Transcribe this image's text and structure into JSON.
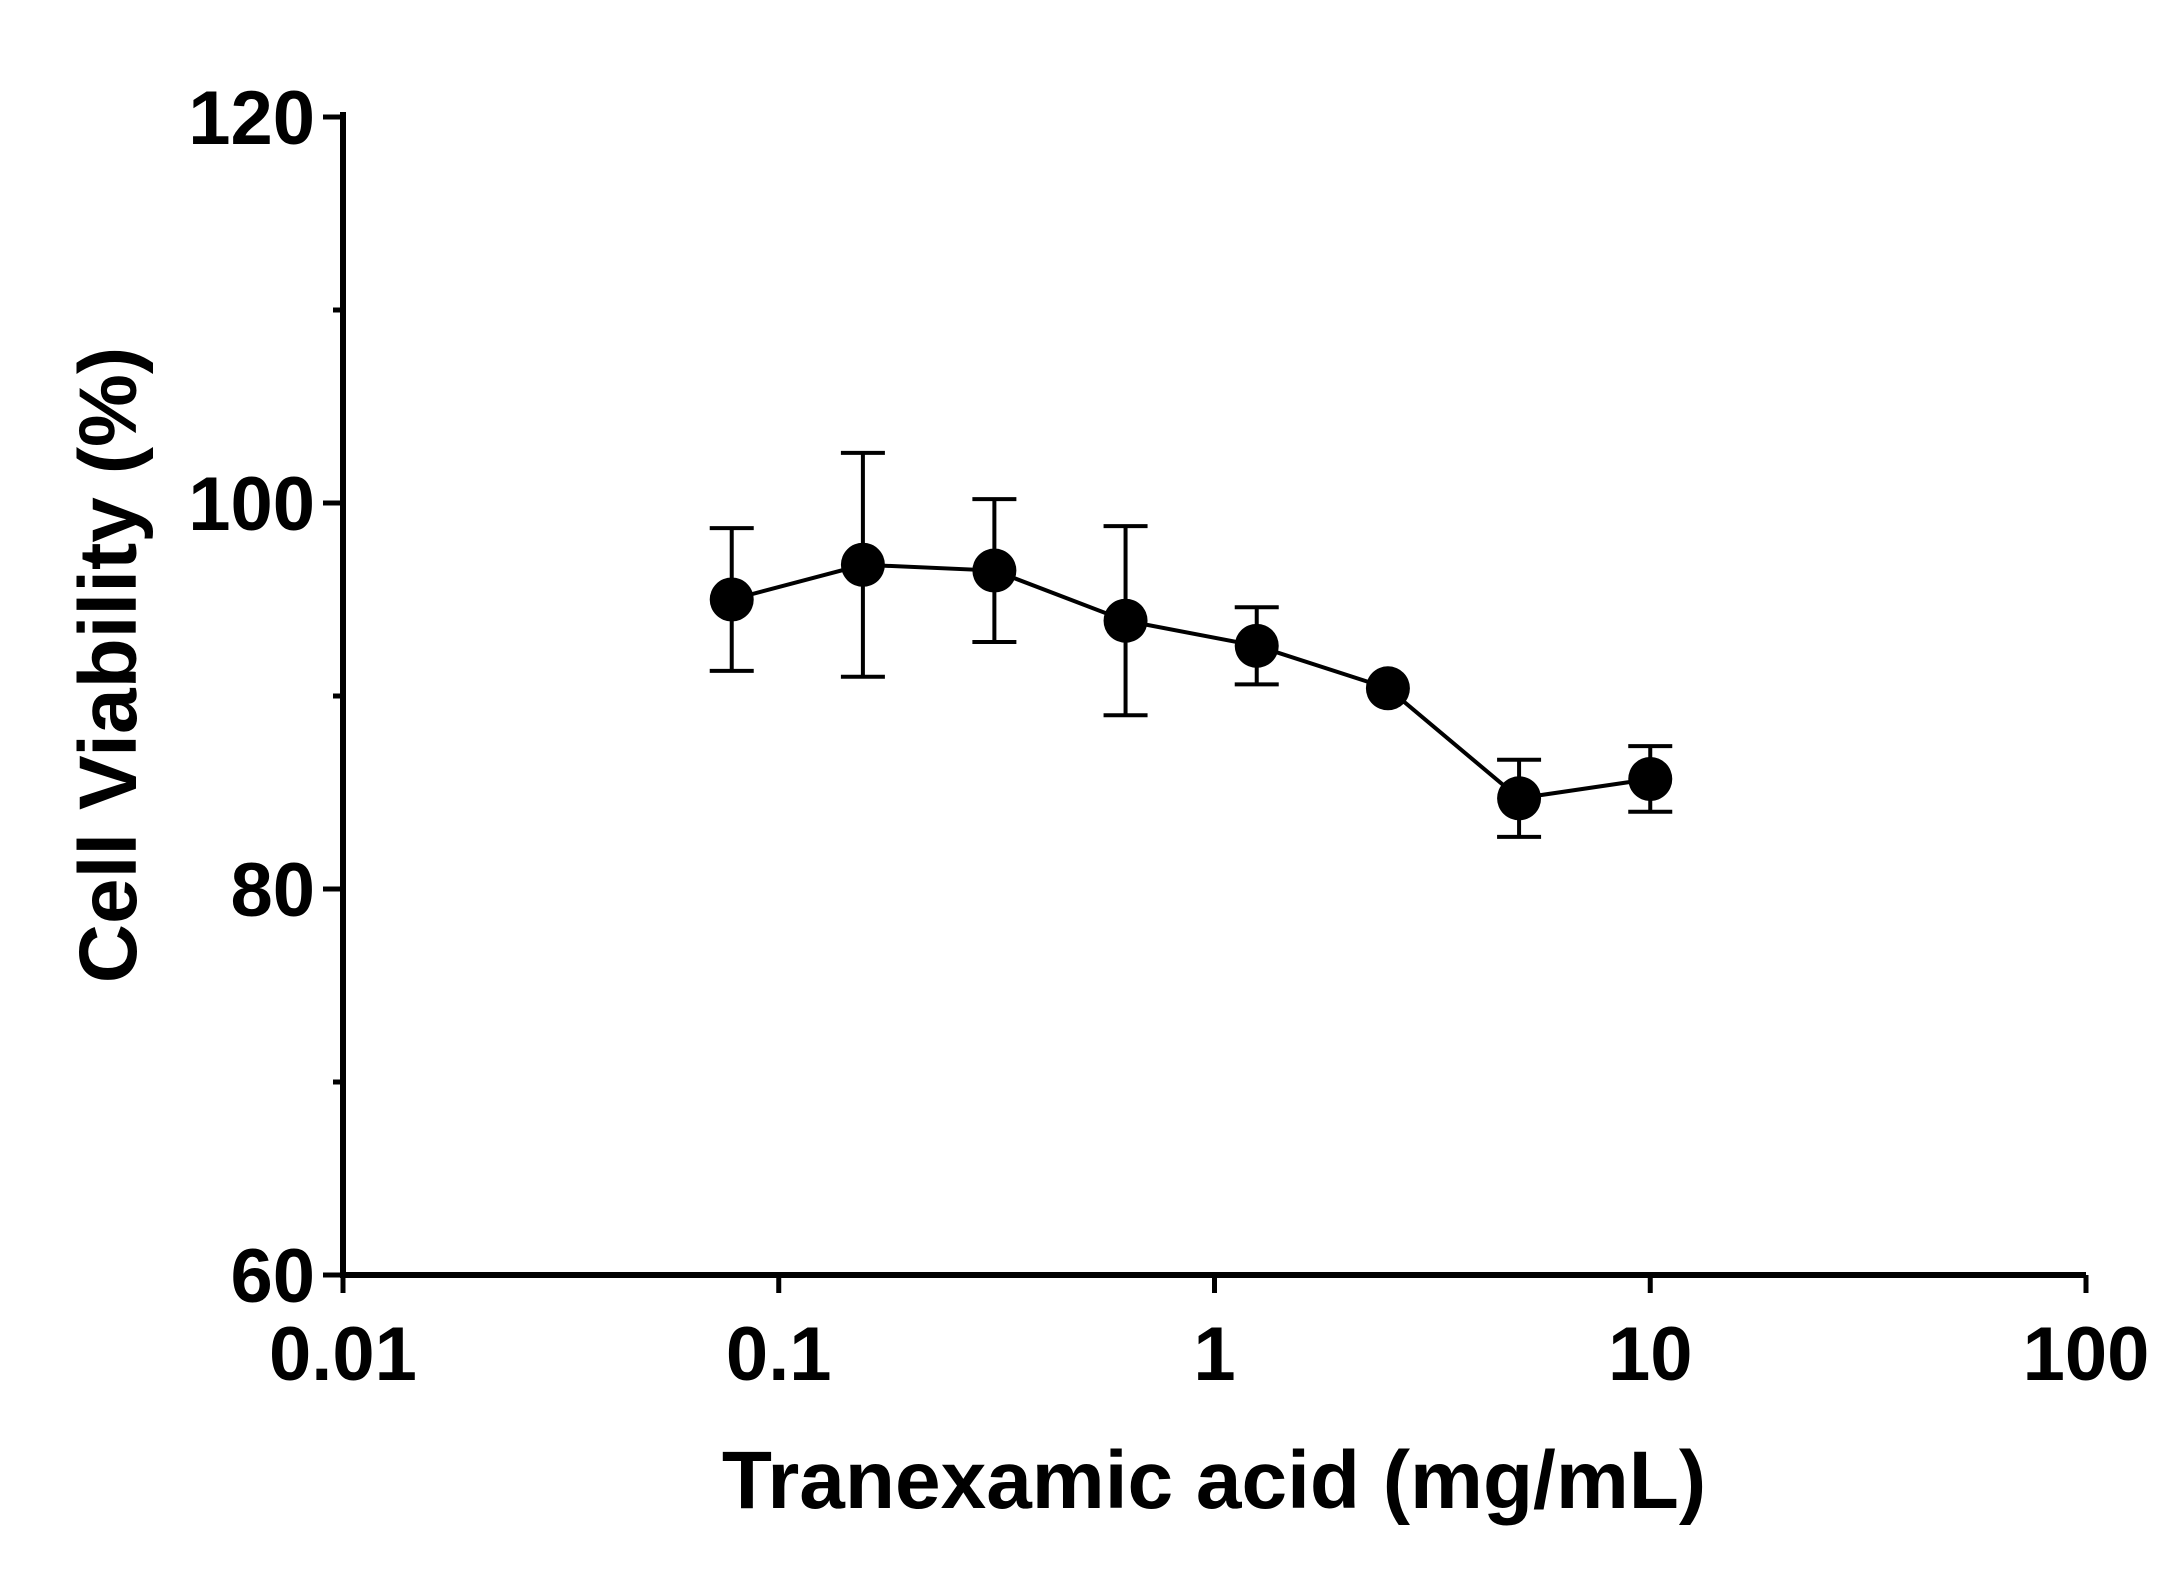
{
  "chart_data": {
    "type": "scatter",
    "xlabel": "Tranexamic acid (mg/mL)",
    "ylabel": "Cell Viability (%)",
    "x_scale": "log",
    "xlim": [
      0.01,
      100
    ],
    "ylim": [
      60,
      120
    ],
    "x_ticks": [
      {
        "value": 0.01,
        "label": "0.01"
      },
      {
        "value": 0.1,
        "label": "0.1"
      },
      {
        "value": 1,
        "label": "1"
      },
      {
        "value": 10,
        "label": "10"
      },
      {
        "value": 100,
        "label": "100"
      }
    ],
    "y_ticks": [
      {
        "value": 60,
        "label": "60"
      },
      {
        "value": 80,
        "label": "80"
      },
      {
        "value": 100,
        "label": "100"
      },
      {
        "value": 120,
        "label": "120"
      }
    ],
    "y_minor_ticks": [
      70,
      90,
      110
    ],
    "grid": false,
    "series": [
      {
        "color": "#000000",
        "connected": true,
        "points": [
          {
            "x": 0.078,
            "y": 95.0,
            "err": 3.7
          },
          {
            "x": 0.156,
            "y": 96.8,
            "err": 5.8
          },
          {
            "x": 0.3125,
            "y": 96.5,
            "err": 3.7
          },
          {
            "x": 0.625,
            "y": 93.9,
            "err": 4.9
          },
          {
            "x": 1.25,
            "y": 92.6,
            "err": 2.0
          },
          {
            "x": 2.5,
            "y": 90.4,
            "err": 0
          },
          {
            "x": 5,
            "y": 84.7,
            "err": 2.0
          },
          {
            "x": 10,
            "y": 85.7,
            "err": 1.7
          }
        ]
      }
    ]
  }
}
